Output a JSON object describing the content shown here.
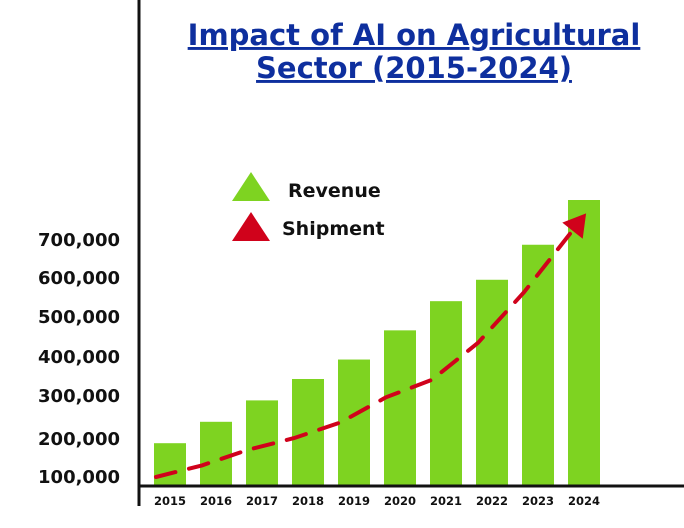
{
  "chart_data": {
    "type": "bar",
    "title_lines": [
      "Impact of AI on Agricultural",
      "Sector (2015-2024)"
    ],
    "xlabel": "",
    "ylabel": "",
    "categories": [
      "2015",
      "2016",
      "2017",
      "2018",
      "2019",
      "2020",
      "2021",
      "2022",
      "2023",
      "2024"
    ],
    "series": [
      {
        "name": "Revenue",
        "values": [
          190000,
          245000,
          300000,
          355000,
          405000,
          480000,
          555000,
          610000,
          700000,
          815000
        ],
        "color": "#7ed321",
        "style": "bar"
      },
      {
        "name": "Shipment",
        "values": [
          175000,
          205000,
          245000,
          275000,
          315000,
          380000,
          425000,
          520000,
          650000,
          800000
        ],
        "color": "#d0021b",
        "style": "dashed-line-arrow"
      }
    ],
    "yticks": [
      "100,000",
      "200,000",
      "300,000",
      "400,000",
      "500,000",
      "600,000",
      "700,000"
    ],
    "ylim": [
      80000,
      815000
    ],
    "grid": false,
    "legend_position": "top-left"
  }
}
